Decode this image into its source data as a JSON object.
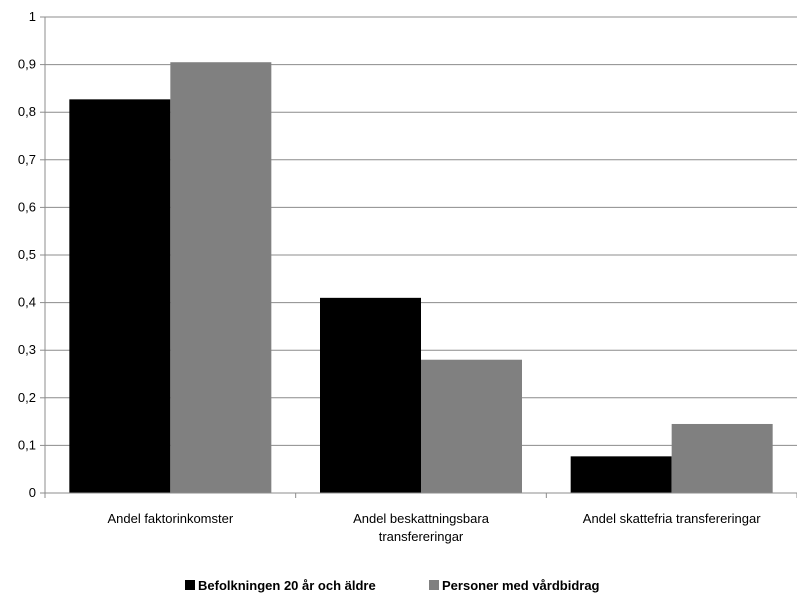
{
  "chart_data": {
    "type": "bar",
    "categories": [
      [
        "Andel faktorinkomster"
      ],
      [
        "Andel beskattningsbara",
        "transfereringar"
      ],
      [
        "Andel skattefria transfereringar"
      ]
    ],
    "series": [
      {
        "name": "Befolkningen 20 år och äldre",
        "color": "#000000",
        "values": [
          0.827,
          0.41,
          0.077
        ]
      },
      {
        "name": "Personer med vårdbidrag",
        "color": "#808080",
        "values": [
          0.905,
          0.28,
          0.145
        ]
      }
    ],
    "ylim": [
      0,
      1
    ],
    "yticks": [
      "0",
      "0,1",
      "0,2",
      "0,3",
      "0,4",
      "0,5",
      "0,6",
      "0,7",
      "0,8",
      "0,9",
      "1"
    ],
    "grid": true,
    "legend": "bottom"
  }
}
